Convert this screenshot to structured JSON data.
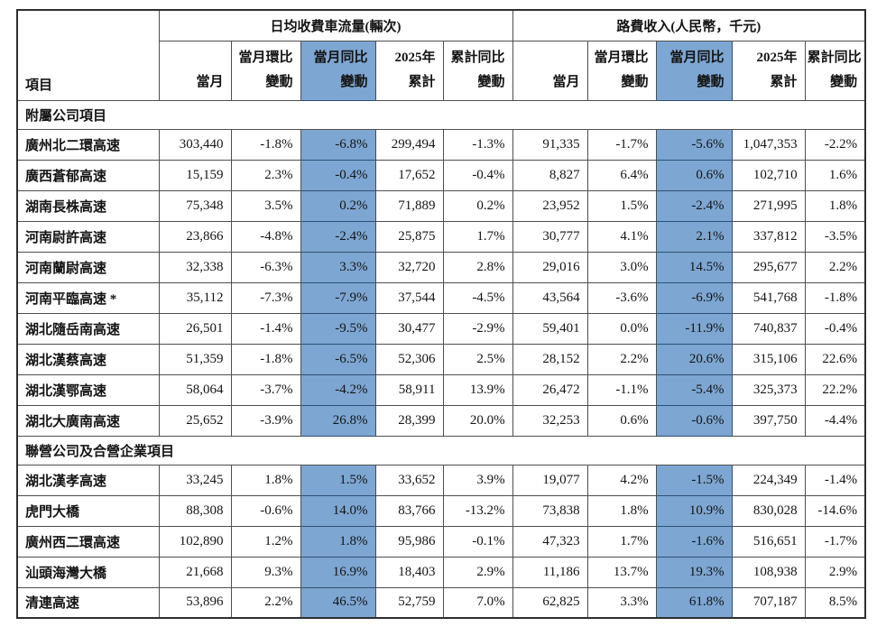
{
  "colors": {
    "highlight_blue": "#7da6d2",
    "border_inner": "#4f4f4f",
    "border_outer": "#2e2e2e",
    "text": "#141414"
  },
  "table": {
    "item_header": "項目",
    "group_headers": [
      "日均收費車流量(輛次)",
      "路費收入(人民幣，千元)"
    ],
    "sub_headers": [
      {
        "line1": "",
        "line2": "當月"
      },
      {
        "line1": "當月環比",
        "line2": "變動"
      },
      {
        "line1": "當月同比",
        "line2": "變動"
      },
      {
        "line1": "2025年",
        "line2": "累計"
      },
      {
        "line1": "累計同比",
        "line2": "變動"
      }
    ],
    "sections": [
      {
        "title": "附屬公司項目",
        "rows": [
          {
            "name": "廣州北二環高速",
            "values": [
              "303,440",
              "-1.8%",
              "-6.8%",
              "299,494",
              "-1.3%",
              "91,335",
              "-1.7%",
              "-5.6%",
              "1,047,353",
              "-2.2%"
            ]
          },
          {
            "name": "廣西蒼郁高速",
            "values": [
              "15,159",
              "2.3%",
              "-0.4%",
              "17,652",
              "-0.4%",
              "8,827",
              "6.4%",
              "0.6%",
              "102,710",
              "1.6%"
            ]
          },
          {
            "name": "湖南長株高速",
            "values": [
              "75,348",
              "3.5%",
              "0.2%",
              "71,889",
              "0.2%",
              "23,952",
              "1.5%",
              "-2.4%",
              "271,995",
              "1.8%"
            ]
          },
          {
            "name": "河南尉許高速",
            "values": [
              "23,866",
              "-4.8%",
              "-2.4%",
              "25,875",
              "1.7%",
              "30,777",
              "4.1%",
              "2.1%",
              "337,812",
              "-3.5%"
            ]
          },
          {
            "name": "河南蘭尉高速",
            "values": [
              "32,338",
              "-6.3%",
              "3.3%",
              "32,720",
              "2.8%",
              "29,016",
              "3.0%",
              "14.5%",
              "295,677",
              "2.2%"
            ]
          },
          {
            "name": "河南平臨高速 *",
            "values": [
              "35,112",
              "-7.3%",
              "-7.9%",
              "37,544",
              "-4.5%",
              "43,564",
              "-3.6%",
              "-6.9%",
              "541,768",
              "-1.8%"
            ]
          },
          {
            "name": "湖北隨岳南高速",
            "values": [
              "26,501",
              "-1.4%",
              "-9.5%",
              "30,477",
              "-2.9%",
              "59,401",
              "0.0%",
              "-11.9%",
              "740,837",
              "-0.4%"
            ]
          },
          {
            "name": "湖北漢蔡高速",
            "values": [
              "51,359",
              "-1.8%",
              "-6.5%",
              "52,306",
              "2.5%",
              "28,152",
              "2.2%",
              "20.6%",
              "315,106",
              "22.6%"
            ]
          },
          {
            "name": "湖北漢鄂高速",
            "values": [
              "58,064",
              "-3.7%",
              "-4.2%",
              "58,911",
              "13.9%",
              "26,472",
              "-1.1%",
              "-5.4%",
              "325,373",
              "22.2%"
            ]
          },
          {
            "name": "湖北大廣南高速",
            "values": [
              "25,652",
              "-3.9%",
              "26.8%",
              "28,399",
              "20.0%",
              "32,253",
              "0.6%",
              "-0.6%",
              "397,750",
              "-4.4%"
            ]
          }
        ]
      },
      {
        "title": "聯營公司及合營企業項目",
        "rows": [
          {
            "name": "湖北漢孝高速",
            "values": [
              "33,245",
              "1.8%",
              "1.5%",
              "33,652",
              "3.9%",
              "19,077",
              "4.2%",
              "-1.5%",
              "224,349",
              "-1.4%"
            ]
          },
          {
            "name": "虎門大橋",
            "values": [
              "88,308",
              "-0.6%",
              "14.0%",
              "83,766",
              "-13.2%",
              "73,838",
              "1.8%",
              "10.9%",
              "830,028",
              "-14.6%"
            ]
          },
          {
            "name": "廣州西二環高速",
            "values": [
              "102,890",
              "1.2%",
              "1.8%",
              "95,986",
              "-0.1%",
              "47,323",
              "1.7%",
              "-1.6%",
              "516,651",
              "-1.7%"
            ]
          },
          {
            "name": "汕頭海灣大橋",
            "values": [
              "21,668",
              "9.3%",
              "16.9%",
              "18,403",
              "2.9%",
              "11,186",
              "13.7%",
              "19.3%",
              "108,938",
              "2.9%"
            ]
          },
          {
            "name": "清連高速",
            "values": [
              "53,896",
              "2.2%",
              "46.5%",
              "52,759",
              "7.0%",
              "62,825",
              "3.3%",
              "61.8%",
              "707,187",
              "8.5%"
            ]
          }
        ]
      }
    ]
  }
}
